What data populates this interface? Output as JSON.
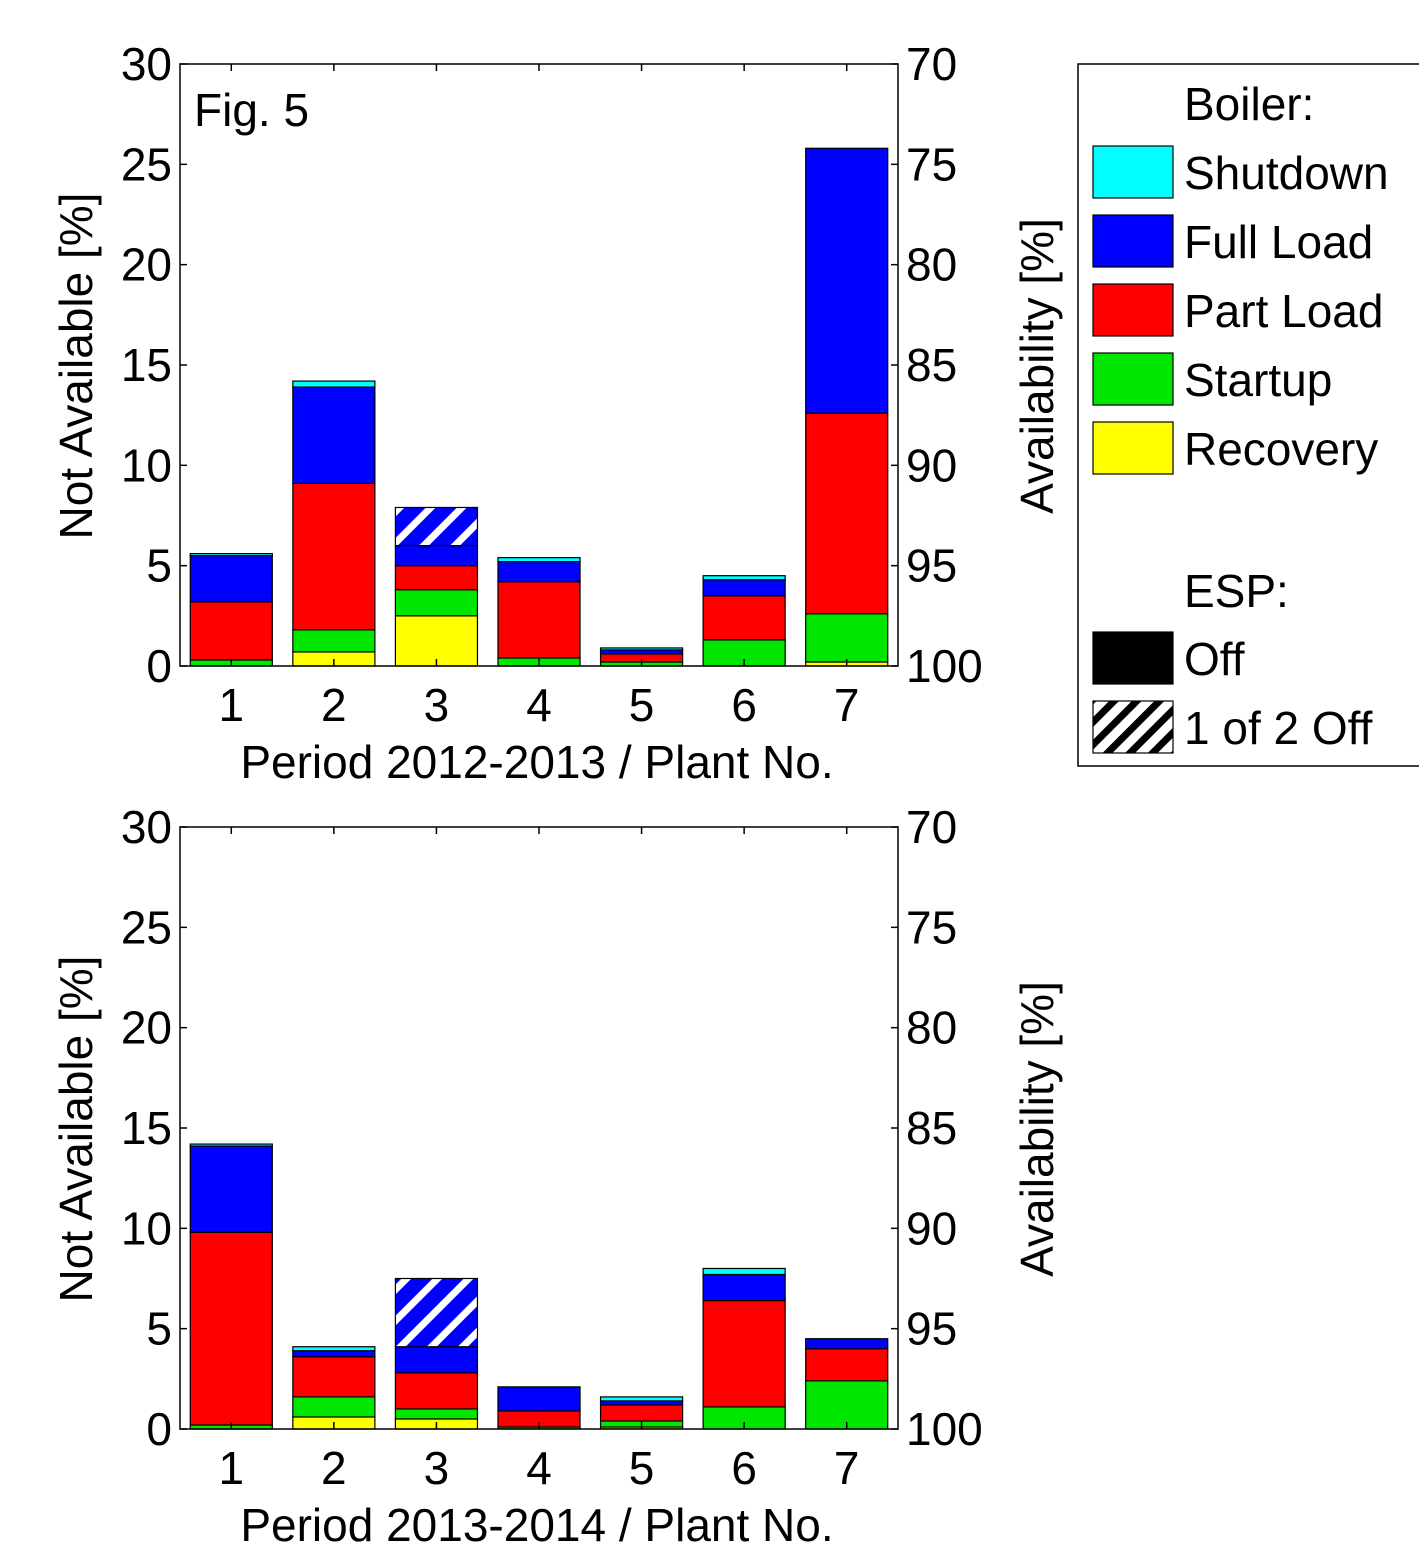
{
  "colors": {
    "Shutdown": "#00ffff",
    "Full Load": "#0000ff",
    "Part Load": "#ff0000",
    "Startup": "#00e600",
    "Recovery": "#ffff00",
    "Off": "#000000"
  },
  "legend": {
    "boiler_title": "Boiler:",
    "boiler_items": [
      "Shutdown",
      "Full Load",
      "Part Load",
      "Startup",
      "Recovery"
    ],
    "esp_title": "ESP:",
    "esp_items": [
      {
        "label": "Off",
        "pattern": "solid"
      },
      {
        "label": "1 of 2 Off",
        "pattern": "hatch"
      }
    ]
  },
  "chart_data": [
    {
      "type": "bar",
      "stacked": true,
      "annotation": "Fig. 5",
      "xlabel": "Period 2012-2013 / Plant No.",
      "ylabel": "Not Available [%]",
      "ylabel_right": "Availability [%]",
      "ylim": [
        0,
        30
      ],
      "ylim_right": [
        100,
        70
      ],
      "yticks": [
        0,
        5,
        10,
        15,
        20,
        25,
        30
      ],
      "yticks_right": [
        100,
        95,
        90,
        85,
        80,
        75,
        70
      ],
      "categories": [
        "1",
        "2",
        "3",
        "4",
        "5",
        "6",
        "7"
      ],
      "grid": false,
      "series": [
        {
          "name": "Recovery",
          "values": [
            0.0,
            0.7,
            2.5,
            0.0,
            0.0,
            0.0,
            0.2
          ]
        },
        {
          "name": "Startup",
          "values": [
            0.3,
            1.1,
            1.3,
            0.4,
            0.2,
            1.3,
            2.4
          ]
        },
        {
          "name": "Part Load",
          "values": [
            2.9,
            7.3,
            1.2,
            3.8,
            0.4,
            2.2,
            10.0
          ]
        },
        {
          "name": "Full Load",
          "values": [
            2.3,
            4.8,
            1.0,
            1.0,
            0.2,
            0.8,
            13.2
          ]
        },
        {
          "name": "Shutdown",
          "values": [
            0.1,
            0.3,
            0.0,
            0.2,
            0.1,
            0.2,
            0.0
          ]
        }
      ],
      "esp_partial_off": [
        0.0,
        0.0,
        1.9,
        0.0,
        0.0,
        0.0,
        0.0
      ]
    },
    {
      "type": "bar",
      "stacked": true,
      "xlabel": "Period 2013-2014 / Plant No.",
      "ylabel": "Not Available [%]",
      "ylabel_right": "Availability [%]",
      "ylim": [
        0,
        30
      ],
      "ylim_right": [
        100,
        70
      ],
      "yticks": [
        0,
        5,
        10,
        15,
        20,
        25,
        30
      ],
      "yticks_right": [
        100,
        95,
        90,
        85,
        80,
        75,
        70
      ],
      "categories": [
        "1",
        "2",
        "3",
        "4",
        "5",
        "6",
        "7"
      ],
      "grid": false,
      "series": [
        {
          "name": "Recovery",
          "values": [
            0.0,
            0.6,
            0.5,
            0.0,
            0.1,
            0.0,
            0.0
          ]
        },
        {
          "name": "Startup",
          "values": [
            0.2,
            1.0,
            0.5,
            0.1,
            0.3,
            1.1,
            2.4
          ]
        },
        {
          "name": "Part Load",
          "values": [
            9.6,
            2.0,
            1.8,
            0.8,
            0.8,
            5.3,
            1.6
          ]
        },
        {
          "name": "Full Load",
          "values": [
            4.3,
            0.3,
            1.3,
            1.2,
            0.2,
            1.3,
            0.5
          ]
        },
        {
          "name": "Shutdown",
          "values": [
            0.1,
            0.2,
            0.0,
            0.0,
            0.2,
            0.3,
            0.0
          ]
        }
      ],
      "esp_partial_off": [
        0.0,
        0.0,
        3.4,
        0.0,
        0.0,
        0.0,
        0.0
      ]
    }
  ]
}
